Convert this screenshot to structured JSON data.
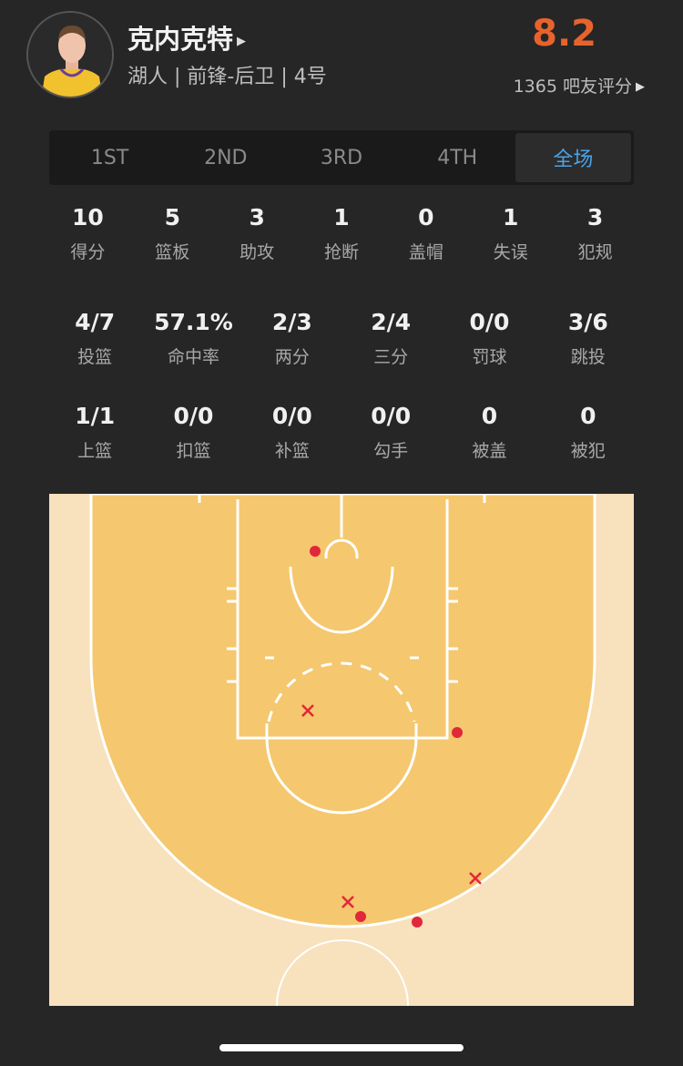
{
  "player": {
    "name": "克内克特",
    "subtitle": "湖人 | 前锋-后卫 | 4号",
    "rating": "8.2",
    "votes": "1365 吧友评分",
    "rating_color": "#e8632c"
  },
  "tabs": [
    {
      "label": "1ST"
    },
    {
      "label": "2ND"
    },
    {
      "label": "3RD"
    },
    {
      "label": "4TH"
    },
    {
      "label": "全场",
      "active": true
    }
  ],
  "stats_row1": [
    {
      "v": "10",
      "l": "得分"
    },
    {
      "v": "5",
      "l": "篮板"
    },
    {
      "v": "3",
      "l": "助攻"
    },
    {
      "v": "1",
      "l": "抢断"
    },
    {
      "v": "0",
      "l": "盖帽"
    },
    {
      "v": "1",
      "l": "失误"
    },
    {
      "v": "3",
      "l": "犯规"
    }
  ],
  "stats_row2": [
    {
      "v": "4/7",
      "l": "投篮"
    },
    {
      "v": "57.1%",
      "l": "命中率"
    },
    {
      "v": "2/3",
      "l": "两分"
    },
    {
      "v": "2/4",
      "l": "三分"
    },
    {
      "v": "0/0",
      "l": "罚球"
    },
    {
      "v": "3/6",
      "l": "跳投"
    }
  ],
  "stats_row3": [
    {
      "v": "1/1",
      "l": "上篮"
    },
    {
      "v": "0/0",
      "l": "扣篮"
    },
    {
      "v": "0/0",
      "l": "补篮"
    },
    {
      "v": "0/0",
      "l": "勾手"
    },
    {
      "v": "0",
      "l": "被盖"
    },
    {
      "v": "0",
      "l": "被犯"
    }
  ],
  "shot_chart": {
    "made": 4,
    "attempts": 7,
    "colors": {
      "court_paint": "#f5c76e",
      "court_outer": "#f8e1bd",
      "shot": "#e0283a"
    },
    "shots": [
      "made",
      "made",
      "made",
      "made",
      "missed",
      "missed",
      "missed"
    ]
  }
}
